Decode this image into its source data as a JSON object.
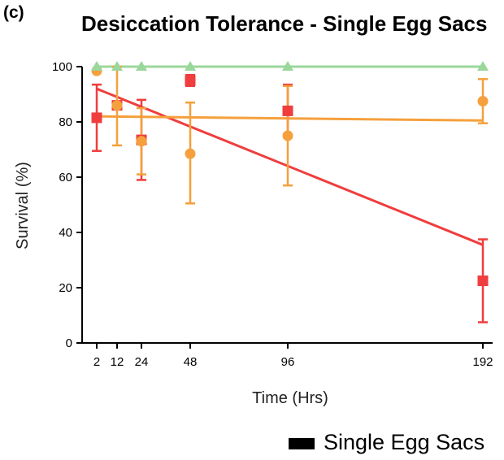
{
  "panel_label": "(c)",
  "chart_data": {
    "type": "line",
    "title": "Desiccation Tolerance - Single Egg Sacs",
    "xlabel": "Time (Hrs)",
    "ylabel": "Survival (%)",
    "x_ticks": [
      2,
      12,
      24,
      48,
      96,
      192
    ],
    "ylim": [
      0,
      100
    ],
    "y_ticks": [
      0,
      20,
      40,
      60,
      80,
      100
    ],
    "grid": false,
    "series": [
      {
        "color": "#f03d3d",
        "marker": "square",
        "points": [
          {
            "x": 2,
            "y": 81.5,
            "err_low": 69.5,
            "err_high": 93.5
          },
          {
            "x": 12,
            "y": 86,
            "err_low": 86,
            "err_high": 86
          },
          {
            "x": 24,
            "y": 73.5,
            "err_low": 59,
            "err_high": 88
          },
          {
            "x": 48,
            "y": 95,
            "err_low": 93,
            "err_high": 97
          },
          {
            "x": 96,
            "y": 84,
            "err_low": 74.5,
            "err_high": 93.5
          },
          {
            "x": 192,
            "y": 22.5,
            "err_low": 7.5,
            "err_high": 37.5
          }
        ],
        "fit": {
          "x": [
            2,
            192
          ],
          "y": [
            92,
            35.5
          ]
        }
      },
      {
        "color": "#f5a03c",
        "marker": "circle",
        "points": [
          {
            "x": 2,
            "y": 98.5,
            "err_low": 98.5,
            "err_high": 98.5
          },
          {
            "x": 12,
            "y": 86,
            "err_low": 71.5,
            "err_high": 100
          },
          {
            "x": 24,
            "y": 73,
            "err_low": 61,
            "err_high": 85
          },
          {
            "x": 48,
            "y": 68.5,
            "err_low": 50.5,
            "err_high": 87
          },
          {
            "x": 96,
            "y": 75,
            "err_low": 57,
            "err_high": 93
          },
          {
            "x": 192,
            "y": 87.5,
            "err_low": 79.5,
            "err_high": 95.5
          }
        ],
        "fit": {
          "x": [
            2,
            192
          ],
          "y": [
            82,
            80.5
          ]
        }
      },
      {
        "color": "#9ad79a",
        "marker": "triangle",
        "points": [
          {
            "x": 2,
            "y": 100
          },
          {
            "x": 12,
            "y": 100
          },
          {
            "x": 24,
            "y": 100
          },
          {
            "x": 48,
            "y": 100
          },
          {
            "x": 96,
            "y": 100
          },
          {
            "x": 192,
            "y": 100
          }
        ],
        "fit": {
          "x": [
            2,
            192
          ],
          "y": [
            100,
            100
          ]
        }
      }
    ],
    "legend": {
      "label": "Single Egg Sacs",
      "swatch_color": "#000000",
      "placement": "bottom-right"
    }
  }
}
